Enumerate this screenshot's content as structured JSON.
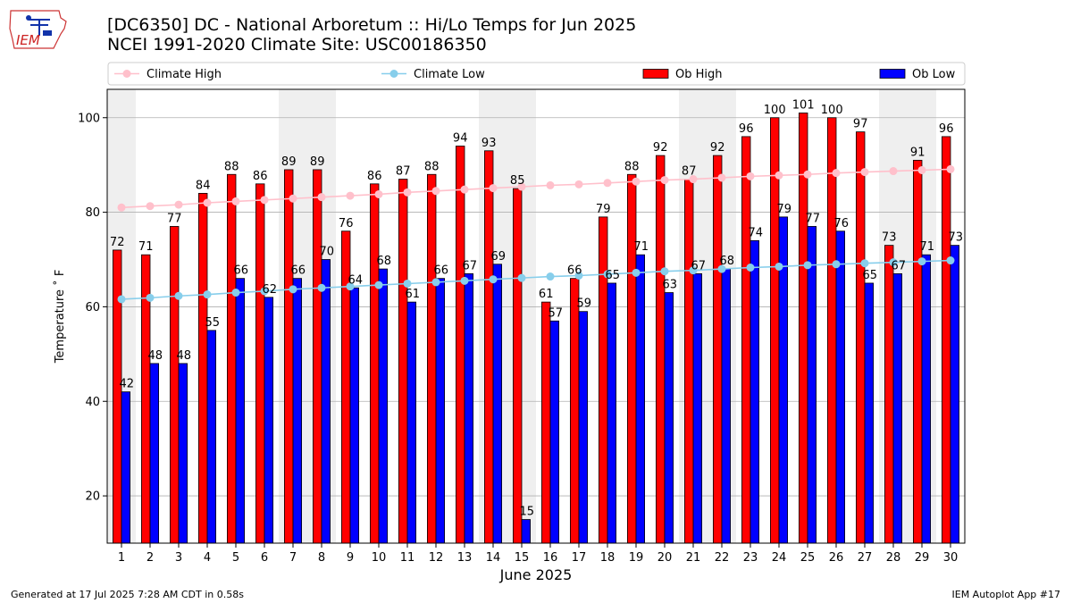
{
  "header": {
    "logo_text": "IEM",
    "title_line1": "[DC6350] DC - National Arboretum :: Hi/Lo Temps for Jun 2025",
    "title_line2": "NCEI 1991-2020 Climate Site: USC00186350"
  },
  "footer": {
    "generated": "Generated at 17 Jul 2025 7:28 AM CDT in 0.58s",
    "app": "IEM Autoplot App #17"
  },
  "chart_data": {
    "type": "bar",
    "xlabel": "June 2025",
    "ylabel": "Temperature ˚ F",
    "ylim": [
      10,
      106
    ],
    "yticks": [
      20,
      40,
      60,
      80,
      100
    ],
    "grid": true,
    "legend_position": "top",
    "categories": [
      "1",
      "2",
      "3",
      "4",
      "5",
      "6",
      "7",
      "8",
      "9",
      "10",
      "11",
      "12",
      "13",
      "14",
      "15",
      "16",
      "17",
      "18",
      "19",
      "20",
      "21",
      "22",
      "23",
      "24",
      "25",
      "26",
      "27",
      "28",
      "29",
      "30"
    ],
    "weekend_days": [
      1,
      7,
      8,
      14,
      15,
      21,
      22,
      28,
      29
    ],
    "series": [
      {
        "name": "Ob High",
        "type": "bar",
        "color": "#ff0000",
        "values": [
          72,
          71,
          77,
          84,
          88,
          86,
          89,
          89,
          76,
          86,
          87,
          88,
          94,
          93,
          85,
          61,
          66,
          79,
          88,
          92,
          87,
          92,
          96,
          100,
          101,
          100,
          97,
          73,
          91,
          96
        ]
      },
      {
        "name": "Ob Low",
        "type": "bar",
        "color": "#0000ff",
        "values": [
          42,
          48,
          48,
          55,
          66,
          62,
          66,
          70,
          64,
          68,
          61,
          66,
          67,
          69,
          15,
          57,
          59,
          65,
          71,
          63,
          67,
          68,
          74,
          79,
          77,
          76,
          65,
          67,
          71,
          73
        ]
      },
      {
        "name": "Climate High",
        "type": "line",
        "color": "#ffc0cb",
        "values": [
          81.0,
          81.3,
          81.6,
          82.0,
          82.3,
          82.6,
          82.9,
          83.2,
          83.5,
          83.8,
          84.2,
          84.5,
          84.8,
          85.1,
          85.4,
          85.7,
          85.9,
          86.2,
          86.5,
          86.8,
          87.0,
          87.3,
          87.6,
          87.8,
          88.0,
          88.3,
          88.5,
          88.7,
          88.9,
          89.1
        ]
      },
      {
        "name": "Climate Low",
        "type": "line",
        "color": "#87ceeb",
        "values": [
          61.6,
          61.9,
          62.3,
          62.6,
          63.0,
          63.3,
          63.7,
          64.0,
          64.3,
          64.6,
          64.9,
          65.2,
          65.5,
          65.8,
          66.1,
          66.4,
          66.6,
          66.9,
          67.2,
          67.5,
          67.7,
          68.0,
          68.3,
          68.5,
          68.8,
          69.0,
          69.2,
          69.4,
          69.6,
          69.8
        ]
      }
    ]
  }
}
